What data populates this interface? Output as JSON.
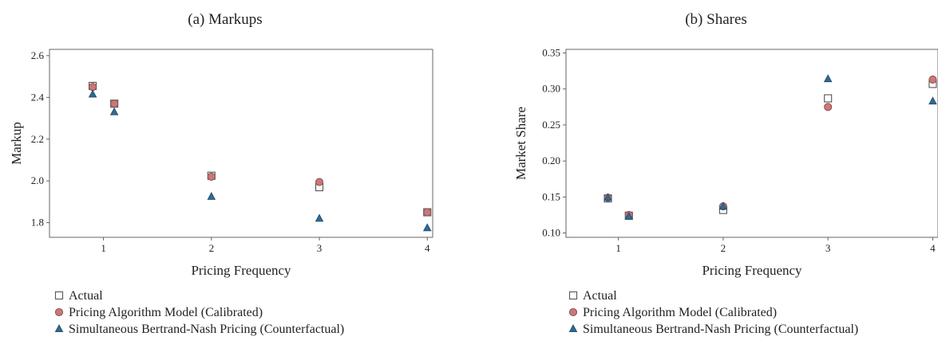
{
  "colors": {
    "actual_stroke": "#555555",
    "calibrated_fill": "#c87878",
    "calibrated_stroke": "#8a4a4a",
    "counterfactual_fill": "#2f6a94",
    "counterfactual_stroke": "#1f4a6a",
    "axis": "#555555"
  },
  "chart_data": [
    {
      "type": "scatter",
      "title": "(a) Markups",
      "xlabel": "Pricing Frequency",
      "ylabel": "Markup",
      "xlim": [
        0.5,
        4.05
      ],
      "ylim": [
        1.73,
        2.63
      ],
      "xticks": [
        1,
        2,
        3,
        4
      ],
      "yticks": [
        1.8,
        2.0,
        2.2,
        2.4,
        2.6
      ],
      "ytick_labels": [
        "1.8",
        "2.0",
        "2.2",
        "2.4",
        "2.6"
      ],
      "grid": false,
      "legend_position": "bottom-left",
      "series": [
        {
          "name": "Actual",
          "marker": "square-open",
          "x": [
            0.9,
            1.1,
            2,
            3,
            4
          ],
          "y": [
            2.455,
            2.37,
            2.025,
            1.97,
            1.85
          ]
        },
        {
          "name": "Pricing Algorithm Model (Calibrated)",
          "marker": "circle",
          "x": [
            0.9,
            1.1,
            2,
            3,
            4
          ],
          "y": [
            2.45,
            2.37,
            2.02,
            1.995,
            1.85
          ]
        },
        {
          "name": "Simultaneous Bertrand-Nash Pricing (Counterfactual)",
          "marker": "triangle",
          "x": [
            0.9,
            1.1,
            2,
            3,
            4
          ],
          "y": [
            2.415,
            2.33,
            1.925,
            1.82,
            1.775
          ]
        }
      ]
    },
    {
      "type": "scatter",
      "title": "(b) Shares",
      "xlabel": "Pricing Frequency",
      "ylabel": "Market Share",
      "xlim": [
        0.5,
        4.05
      ],
      "ylim": [
        0.094,
        0.355
      ],
      "xticks": [
        1,
        2,
        3,
        4
      ],
      "yticks": [
        0.1,
        0.15,
        0.2,
        0.25,
        0.3,
        0.35
      ],
      "ytick_labels": [
        "0.10",
        "0.15",
        "0.20",
        "0.25",
        "0.30",
        "0.35"
      ],
      "grid": false,
      "legend_position": "bottom-left",
      "series": [
        {
          "name": "Actual",
          "marker": "square-open",
          "x": [
            0.9,
            1.1,
            2,
            3,
            4
          ],
          "y": [
            0.148,
            0.124,
            0.132,
            0.287,
            0.307
          ]
        },
        {
          "name": "Pricing Algorithm Model (Calibrated)",
          "marker": "circle",
          "x": [
            0.9,
            1.1,
            2,
            3,
            4
          ],
          "y": [
            0.149,
            0.125,
            0.137,
            0.275,
            0.313
          ]
        },
        {
          "name": "Simultaneous Bertrand-Nash Pricing (Counterfactual)",
          "marker": "triangle",
          "x": [
            0.9,
            1.1,
            2,
            3,
            4
          ],
          "y": [
            0.149,
            0.123,
            0.137,
            0.314,
            0.283
          ]
        }
      ]
    }
  ]
}
